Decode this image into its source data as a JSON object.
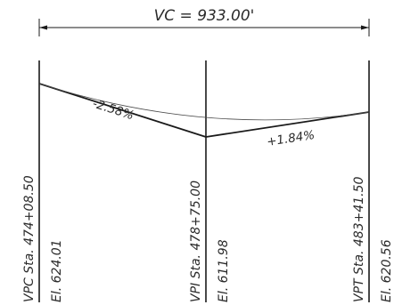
{
  "curve_length_label": "VC = 933.00'",
  "grades": {
    "back": "-2.58%",
    "forward": "+1.84%"
  },
  "points": {
    "vpc": {
      "station": "VPC Sta. 474+08.50",
      "elevation": "El. 624.01"
    },
    "vpi": {
      "station": "VPI Sta. 478+75.00",
      "elevation": "El. 611.98"
    },
    "vpt": {
      "station": "VPT Sta. 483+41.50",
      "elevation": "El. 620.56"
    }
  }
}
